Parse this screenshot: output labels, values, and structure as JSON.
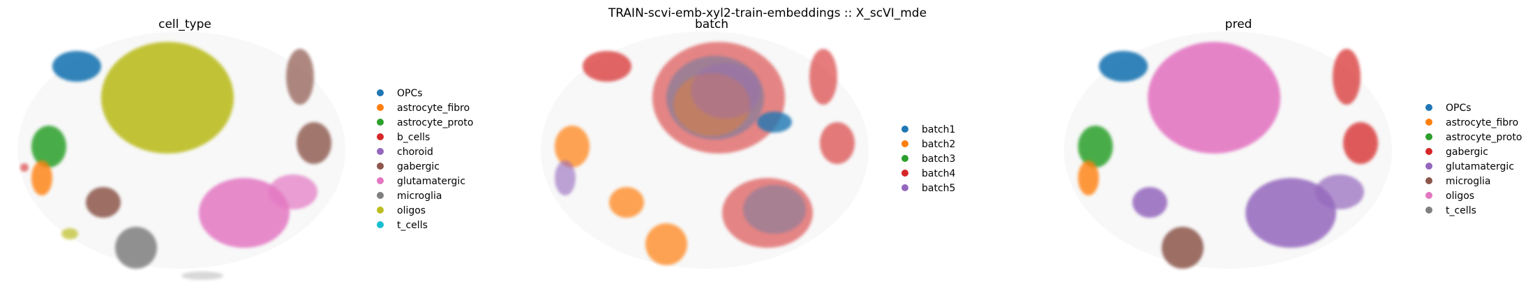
{
  "figure": {
    "suptitle": "TRAIN-scvi-emb-xyl2-train-embeddings :: X_scVI_mde"
  },
  "chart_data": [
    {
      "type": "scatter",
      "title": "cell_type",
      "xlabel": "",
      "ylabel": "",
      "axes_visible": false,
      "legend": {
        "placement": "right"
      },
      "series": [
        {
          "name": "OPCs",
          "color": "#1f77b4"
        },
        {
          "name": "astrocyte_fibro",
          "color": "#ff7f0e"
        },
        {
          "name": "astrocyte_proto",
          "color": "#2ca02c"
        },
        {
          "name": "b_cells",
          "color": "#d62728"
        },
        {
          "name": "choroid",
          "color": "#9467bd"
        },
        {
          "name": "gabergic",
          "color": "#8c564b"
        },
        {
          "name": "glutamatergic",
          "color": "#e377c2"
        },
        {
          "name": "microglia",
          "color": "#7f7f7f"
        },
        {
          "name": "oligos",
          "color": "#bcbd22"
        },
        {
          "name": "t_cells",
          "color": "#17becf"
        }
      ]
    },
    {
      "type": "scatter",
      "title": "batch",
      "xlabel": "",
      "ylabel": "",
      "axes_visible": false,
      "legend": {
        "placement": "right"
      },
      "series": [
        {
          "name": "batch1",
          "color": "#1f77b4"
        },
        {
          "name": "batch2",
          "color": "#ff7f0e"
        },
        {
          "name": "batch3",
          "color": "#2ca02c"
        },
        {
          "name": "batch4",
          "color": "#d62728"
        },
        {
          "name": "batch5",
          "color": "#9467bd"
        }
      ]
    },
    {
      "type": "scatter",
      "title": "pred",
      "xlabel": "",
      "ylabel": "",
      "axes_visible": false,
      "legend": {
        "placement": "right"
      },
      "series": [
        {
          "name": "OPCs",
          "color": "#1f77b4"
        },
        {
          "name": "astrocyte_fibro",
          "color": "#ff7f0e"
        },
        {
          "name": "astrocyte_proto",
          "color": "#2ca02c"
        },
        {
          "name": "gabergic",
          "color": "#d62728"
        },
        {
          "name": "glutamatergic",
          "color": "#9467bd"
        },
        {
          "name": "microglia",
          "color": "#8c564b"
        },
        {
          "name": "oligos",
          "color": "#e377c2"
        },
        {
          "name": "t_cells",
          "color": "#7f7f7f"
        }
      ]
    }
  ]
}
